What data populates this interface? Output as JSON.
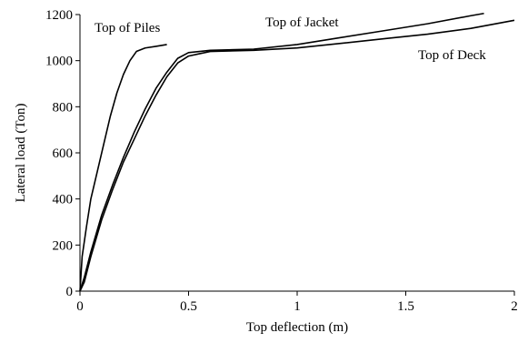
{
  "chart_data": {
    "type": "line",
    "title": "",
    "xlabel": "Top deflection (m)",
    "ylabel": "Lateral load (Ton)",
    "xlim": [
      0,
      2
    ],
    "ylim": [
      0,
      1200
    ],
    "xticks": [
      0,
      0.5,
      1,
      1.5,
      2
    ],
    "xtick_labels": [
      "0",
      "0.5",
      "1",
      "1.5",
      "2"
    ],
    "yticks": [
      0,
      200,
      400,
      600,
      800,
      1000,
      1200
    ],
    "ytick_labels": [
      "0",
      "200",
      "400",
      "600",
      "800",
      "1000",
      "1200"
    ],
    "grid": false,
    "legend": "none",
    "line_color": "#000000",
    "series": [
      {
        "name": "Top of Piles",
        "points": [
          [
            0,
            0
          ],
          [
            0.01,
            150
          ],
          [
            0.03,
            280
          ],
          [
            0.05,
            400
          ],
          [
            0.08,
            520
          ],
          [
            0.11,
            640
          ],
          [
            0.14,
            760
          ],
          [
            0.17,
            860
          ],
          [
            0.2,
            940
          ],
          [
            0.23,
            1000
          ],
          [
            0.26,
            1040
          ],
          [
            0.3,
            1055
          ],
          [
            0.35,
            1062
          ],
          [
            0.4,
            1070
          ]
        ]
      },
      {
        "name": "Top of Jacket",
        "points": [
          [
            0,
            0
          ],
          [
            0.02,
            60
          ],
          [
            0.05,
            170
          ],
          [
            0.1,
            330
          ],
          [
            0.15,
            460
          ],
          [
            0.2,
            580
          ],
          [
            0.25,
            690
          ],
          [
            0.3,
            790
          ],
          [
            0.35,
            880
          ],
          [
            0.4,
            950
          ],
          [
            0.45,
            1010
          ],
          [
            0.5,
            1035
          ],
          [
            0.6,
            1045
          ],
          [
            0.8,
            1050
          ],
          [
            1.0,
            1070
          ],
          [
            1.2,
            1100
          ],
          [
            1.4,
            1130
          ],
          [
            1.6,
            1160
          ],
          [
            1.8,
            1195
          ],
          [
            1.86,
            1205
          ]
        ]
      },
      {
        "name": "Top of Deck",
        "points": [
          [
            0,
            0
          ],
          [
            0.02,
            40
          ],
          [
            0.05,
            150
          ],
          [
            0.1,
            310
          ],
          [
            0.15,
            440
          ],
          [
            0.2,
            560
          ],
          [
            0.25,
            660
          ],
          [
            0.3,
            760
          ],
          [
            0.35,
            850
          ],
          [
            0.4,
            930
          ],
          [
            0.45,
            990
          ],
          [
            0.5,
            1020
          ],
          [
            0.55,
            1030
          ],
          [
            0.6,
            1040
          ],
          [
            0.8,
            1045
          ],
          [
            1.0,
            1055
          ],
          [
            1.2,
            1075
          ],
          [
            1.4,
            1095
          ],
          [
            1.6,
            1115
          ],
          [
            1.8,
            1140
          ],
          [
            2.0,
            1175
          ]
        ]
      }
    ]
  }
}
